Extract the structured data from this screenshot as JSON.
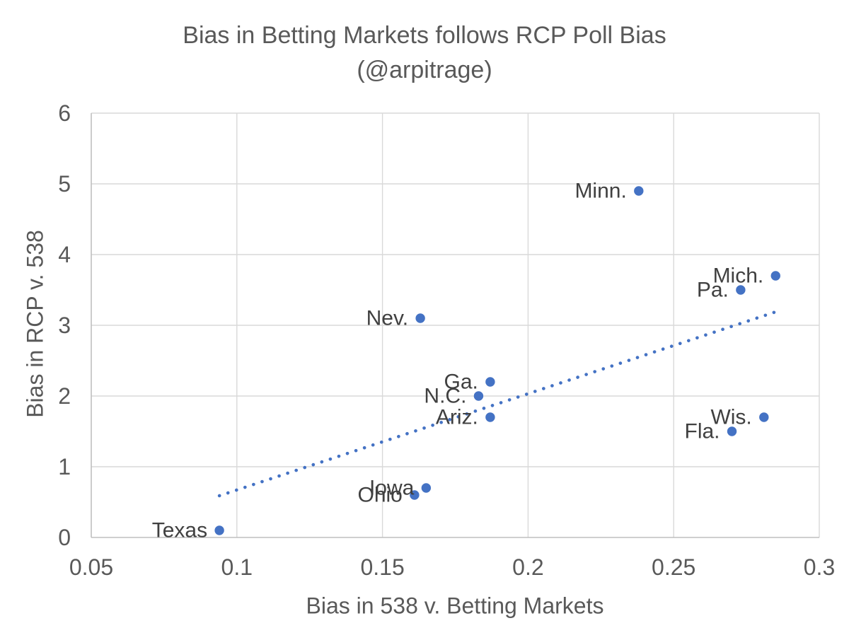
{
  "title": {
    "line1": "Bias in Betting Markets follows RCP Poll Bias",
    "line2": "(@arpitrage)"
  },
  "chart_data": {
    "type": "scatter",
    "title": "Bias in Betting Markets follows RCP Poll Bias (@arpitrage)",
    "xlabel": "Bias in 538 v. Betting Markets",
    "ylabel": "Bias in RCP v. 538",
    "xlim": [
      0.05,
      0.3
    ],
    "ylim": [
      0,
      6
    ],
    "x_ticks": [
      0.05,
      0.1,
      0.15,
      0.2,
      0.25,
      0.3
    ],
    "x_tick_labels": [
      "0.05",
      "0.1",
      "0.15",
      "0.2",
      "0.25",
      "0.3"
    ],
    "y_ticks": [
      0,
      1,
      2,
      3,
      4,
      5,
      6
    ],
    "y_tick_labels": [
      "0",
      "1",
      "2",
      "3",
      "4",
      "5",
      "6"
    ],
    "grid": true,
    "legend": false,
    "points": [
      {
        "label": "Texas",
        "x": 0.094,
        "y": 0.1
      },
      {
        "label": "Ohio",
        "x": 0.161,
        "y": 0.6
      },
      {
        "label": "Iowa",
        "x": 0.165,
        "y": 0.7
      },
      {
        "label": "Nev.",
        "x": 0.163,
        "y": 3.1
      },
      {
        "label": "N.C.",
        "x": 0.183,
        "y": 2.0
      },
      {
        "label": "Ga.",
        "x": 0.187,
        "y": 2.2
      },
      {
        "label": "Ariz.",
        "x": 0.187,
        "y": 1.7
      },
      {
        "label": "Minn.",
        "x": 0.238,
        "y": 4.9
      },
      {
        "label": "Fla.",
        "x": 0.27,
        "y": 1.5
      },
      {
        "label": "Wis.",
        "x": 0.281,
        "y": 1.7
      },
      {
        "label": "Pa.",
        "x": 0.273,
        "y": 3.5
      },
      {
        "label": "Mich.",
        "x": 0.285,
        "y": 3.7
      }
    ],
    "trendline": {
      "style": "dotted",
      "x1": 0.094,
      "y1": 0.59,
      "x2": 0.285,
      "y2": 3.19
    },
    "colors": {
      "point": "#4472C4",
      "trendline": "#4472C4",
      "grid": "#D9D9D9",
      "axis": "#BFBFBF",
      "tick_text": "#595959",
      "label_text": "#404040",
      "title_text": "#595959",
      "background": "#FFFFFF"
    }
  }
}
